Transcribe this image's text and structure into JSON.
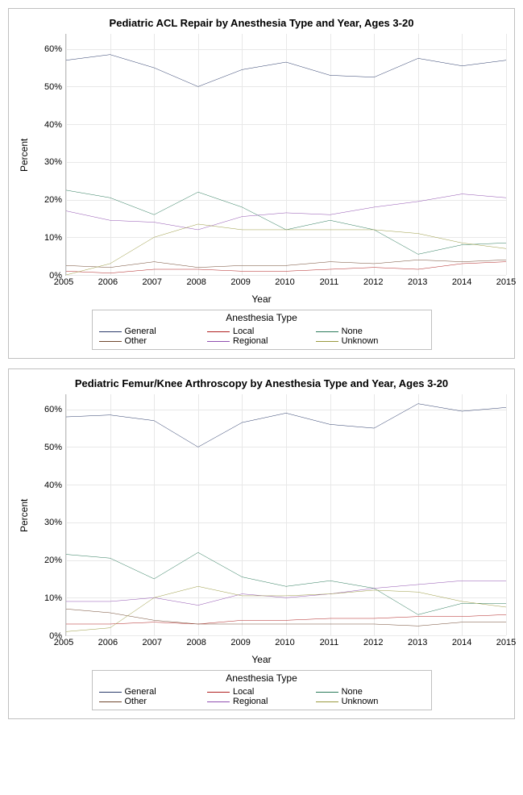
{
  "charts": [
    {
      "title": "Pediatric ACL Repair by Anesthesia Type and Year, Ages 3-20",
      "ylabel": "Percent",
      "xlabel": "Year",
      "ylim": [
        0,
        64
      ],
      "ytick_vals": [
        0,
        10,
        20,
        30,
        40,
        50,
        60
      ],
      "ytick_labels": [
        "0%",
        "10%",
        "20%",
        "30%",
        "40%",
        "50%",
        "60%"
      ],
      "years": [
        2005,
        2006,
        2007,
        2008,
        2009,
        2010,
        2011,
        2012,
        2013,
        2014,
        2015
      ],
      "legend_title": "Anesthesia Type",
      "series": [
        {
          "name": "General",
          "color": "#2a3a6a",
          "values": [
            57,
            58.5,
            55,
            50,
            54.5,
            56.5,
            53,
            52.5,
            57.5,
            55.5,
            57
          ]
        },
        {
          "name": "Local",
          "color": "#b02020",
          "values": [
            1,
            0.5,
            1.5,
            1.5,
            1,
            1,
            1.5,
            2,
            1.5,
            3,
            3.5
          ]
        },
        {
          "name": "None",
          "color": "#2a7a5a",
          "values": [
            22.5,
            20.5,
            16,
            22,
            18,
            12,
            14.5,
            12,
            5.5,
            8,
            8.5
          ]
        },
        {
          "name": "Other",
          "color": "#704830",
          "values": [
            2.5,
            2,
            3.5,
            2,
            2.5,
            2.5,
            3.5,
            3,
            4,
            3.5,
            4
          ]
        },
        {
          "name": "Regional",
          "color": "#9050b0",
          "values": [
            17,
            14.5,
            14,
            12,
            15.5,
            16.5,
            16,
            18,
            19.5,
            21.5,
            20.5
          ]
        },
        {
          "name": "Unknown",
          "color": "#9a9a40",
          "values": [
            0,
            3,
            10,
            13.5,
            12,
            12,
            12,
            12,
            11,
            8.5,
            7
          ]
        }
      ]
    },
    {
      "title": "Pediatric Femur/Knee Arthroscopy by Anesthesia Type and Year, Ages 3-20",
      "ylabel": "Percent",
      "xlabel": "Year",
      "ylim": [
        0,
        64
      ],
      "ytick_vals": [
        0,
        10,
        20,
        30,
        40,
        50,
        60
      ],
      "ytick_labels": [
        "0%",
        "10%",
        "20%",
        "30%",
        "40%",
        "50%",
        "60%"
      ],
      "years": [
        2005,
        2006,
        2007,
        2008,
        2009,
        2010,
        2011,
        2012,
        2013,
        2014,
        2015
      ],
      "legend_title": "Anesthesia Type",
      "series": [
        {
          "name": "General",
          "color": "#2a3a6a",
          "values": [
            58,
            58.5,
            57,
            50,
            56.5,
            59,
            56,
            55,
            61.5,
            59.5,
            60.5
          ]
        },
        {
          "name": "Local",
          "color": "#b02020",
          "values": [
            3,
            3,
            3.5,
            3,
            4,
            4,
            4.5,
            4.5,
            5,
            5,
            5.5
          ]
        },
        {
          "name": "None",
          "color": "#2a7a5a",
          "values": [
            21.5,
            20.5,
            15,
            22,
            15.5,
            13,
            14.5,
            12.5,
            5.5,
            8.5,
            8.5
          ]
        },
        {
          "name": "Other",
          "color": "#704830",
          "values": [
            7,
            6,
            4,
            3,
            3,
            3,
            3,
            3,
            2.5,
            3.5,
            3.5
          ]
        },
        {
          "name": "Regional",
          "color": "#9050b0",
          "values": [
            9,
            9,
            10,
            8,
            11,
            10,
            11,
            12.5,
            13.5,
            14.5,
            14.5
          ]
        },
        {
          "name": "Unknown",
          "color": "#9a9a40",
          "values": [
            1,
            2,
            10,
            13,
            10.5,
            10.5,
            11,
            12,
            11.5,
            9,
            7.5
          ]
        }
      ]
    }
  ]
}
